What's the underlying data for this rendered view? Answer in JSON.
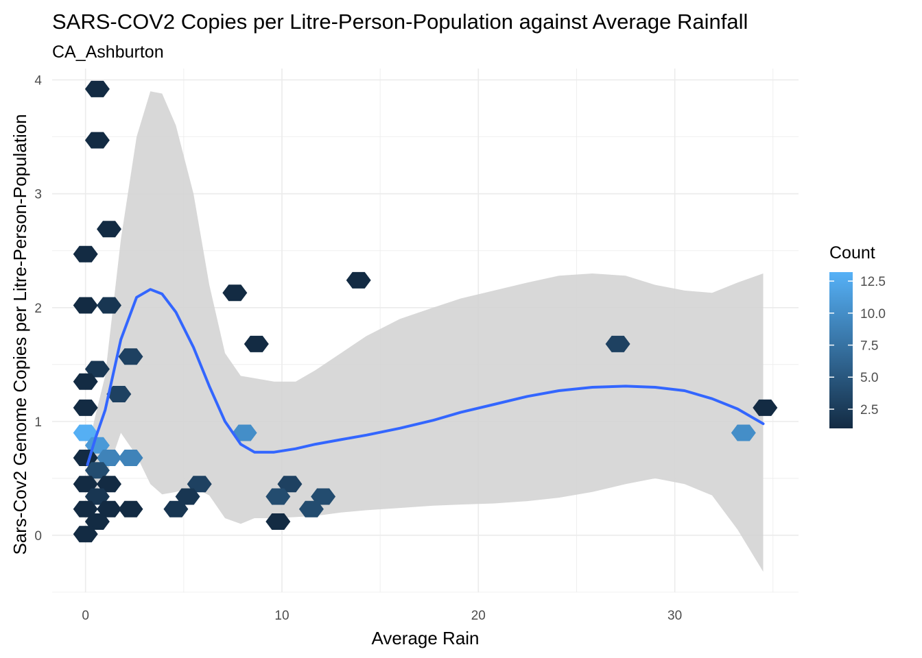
{
  "chart_data": {
    "type": "hexbin",
    "title": "SARS-COV2 Copies per Litre-Person-Population against Average Rainfall",
    "subtitle": "CA_Ashburton",
    "xlabel": "Average Rain",
    "ylabel": "Sars-Cov2 Genome Copies per Litre-Person-Population",
    "xlim": [
      -1.7,
      36.3
    ],
    "ylim": [
      -0.5,
      4.1
    ],
    "x_ticks": [
      0,
      10,
      20,
      30
    ],
    "y_ticks": [
      0,
      1,
      2,
      3,
      4
    ],
    "grid": true,
    "legend": {
      "title": "Count",
      "placement": "right",
      "range": [
        1,
        13.2
      ],
      "ticks": [
        2.5,
        5.0,
        7.5,
        10.0,
        12.5
      ],
      "tick_labels": [
        "2.5",
        "5.0",
        "7.5",
        "10.0",
        "12.5"
      ],
      "color_low": "#132b43",
      "color_high": "#56b1f7"
    },
    "hexagons": [
      {
        "x": 0.6,
        "y": 3.92,
        "count": 1
      },
      {
        "x": 0.6,
        "y": 3.47,
        "count": 1
      },
      {
        "x": 1.2,
        "y": 2.69,
        "count": 1
      },
      {
        "x": 0.0,
        "y": 2.47,
        "count": 1
      },
      {
        "x": 0.0,
        "y": 2.02,
        "count": 1
      },
      {
        "x": 1.2,
        "y": 2.02,
        "count": 2
      },
      {
        "x": 13.9,
        "y": 2.24,
        "count": 1
      },
      {
        "x": 7.6,
        "y": 2.13,
        "count": 1
      },
      {
        "x": 8.7,
        "y": 1.68,
        "count": 1
      },
      {
        "x": 27.1,
        "y": 1.68,
        "count": 3
      },
      {
        "x": 2.3,
        "y": 1.57,
        "count": 3
      },
      {
        "x": 0.6,
        "y": 1.46,
        "count": 2
      },
      {
        "x": 0.0,
        "y": 1.35,
        "count": 1
      },
      {
        "x": 1.7,
        "y": 1.24,
        "count": 3
      },
      {
        "x": 0.0,
        "y": 1.12,
        "count": 1
      },
      {
        "x": 34.6,
        "y": 1.12,
        "count": 1
      },
      {
        "x": 0.0,
        "y": 0.9,
        "count": 13
      },
      {
        "x": 8.1,
        "y": 0.9,
        "count": 10
      },
      {
        "x": 33.5,
        "y": 0.9,
        "count": 10
      },
      {
        "x": 0.6,
        "y": 0.79,
        "count": 11
      },
      {
        "x": 1.2,
        "y": 0.68,
        "count": 9
      },
      {
        "x": 2.3,
        "y": 0.68,
        "count": 9
      },
      {
        "x": 0.0,
        "y": 0.68,
        "count": 1
      },
      {
        "x": 0.6,
        "y": 0.57,
        "count": 4
      },
      {
        "x": 0.0,
        "y": 0.45,
        "count": 1
      },
      {
        "x": 1.2,
        "y": 0.45,
        "count": 1
      },
      {
        "x": 5.8,
        "y": 0.45,
        "count": 3
      },
      {
        "x": 10.4,
        "y": 0.45,
        "count": 3
      },
      {
        "x": 0.6,
        "y": 0.34,
        "count": 2
      },
      {
        "x": 5.2,
        "y": 0.34,
        "count": 2
      },
      {
        "x": 9.8,
        "y": 0.34,
        "count": 4
      },
      {
        "x": 12.1,
        "y": 0.34,
        "count": 4
      },
      {
        "x": 0.0,
        "y": 0.23,
        "count": 1
      },
      {
        "x": 1.2,
        "y": 0.23,
        "count": 1
      },
      {
        "x": 2.3,
        "y": 0.23,
        "count": 1
      },
      {
        "x": 4.6,
        "y": 0.23,
        "count": 2
      },
      {
        "x": 11.5,
        "y": 0.23,
        "count": 4
      },
      {
        "x": 0.6,
        "y": 0.12,
        "count": 1
      },
      {
        "x": 9.8,
        "y": 0.12,
        "count": 1
      },
      {
        "x": 0.0,
        "y": 0.01,
        "count": 1
      }
    ],
    "smooth_line": {
      "color": "#3366ff",
      "x": [
        0.1,
        0.5,
        1.0,
        1.8,
        2.6,
        3.3,
        3.9,
        4.6,
        5.5,
        6.3,
        7.1,
        7.9,
        8.6,
        9.6,
        10.7,
        11.7,
        13.0,
        14.3,
        16.0,
        17.7,
        19.1,
        20.8,
        22.5,
        24.1,
        25.8,
        27.5,
        29.0,
        30.5,
        31.9,
        33.2,
        34.5
      ],
      "y": [
        0.62,
        0.85,
        1.1,
        1.72,
        2.09,
        2.16,
        2.12,
        1.96,
        1.65,
        1.31,
        1.0,
        0.8,
        0.73,
        0.73,
        0.76,
        0.8,
        0.84,
        0.88,
        0.94,
        1.01,
        1.08,
        1.15,
        1.22,
        1.27,
        1.3,
        1.31,
        1.3,
        1.27,
        1.2,
        1.11,
        0.98
      ]
    },
    "confidence_band": {
      "color": "#d4d4d4",
      "x": [
        0.1,
        0.5,
        1.0,
        1.8,
        2.6,
        3.3,
        3.9,
        4.6,
        5.5,
        6.3,
        7.1,
        7.9,
        8.6,
        9.6,
        10.7,
        11.7,
        13.0,
        14.3,
        16.0,
        17.7,
        19.1,
        20.8,
        22.5,
        24.1,
        25.8,
        27.5,
        29.0,
        30.5,
        31.9,
        33.2,
        34.5
      ],
      "upper": [
        0.75,
        1.05,
        1.4,
        2.6,
        3.5,
        3.9,
        3.88,
        3.6,
        3.0,
        2.2,
        1.6,
        1.4,
        1.38,
        1.35,
        1.35,
        1.45,
        1.6,
        1.75,
        1.9,
        2.0,
        2.08,
        2.15,
        2.22,
        2.28,
        2.3,
        2.28,
        2.2,
        2.15,
        2.13,
        2.22,
        2.3
      ],
      "lower": [
        0.4,
        0.38,
        0.5,
        0.9,
        0.7,
        0.45,
        0.36,
        0.38,
        0.42,
        0.35,
        0.15,
        0.1,
        0.15,
        0.15,
        0.16,
        0.17,
        0.2,
        0.22,
        0.24,
        0.26,
        0.27,
        0.28,
        0.3,
        0.33,
        0.38,
        0.45,
        0.5,
        0.45,
        0.35,
        0.05,
        -0.32
      ]
    }
  }
}
